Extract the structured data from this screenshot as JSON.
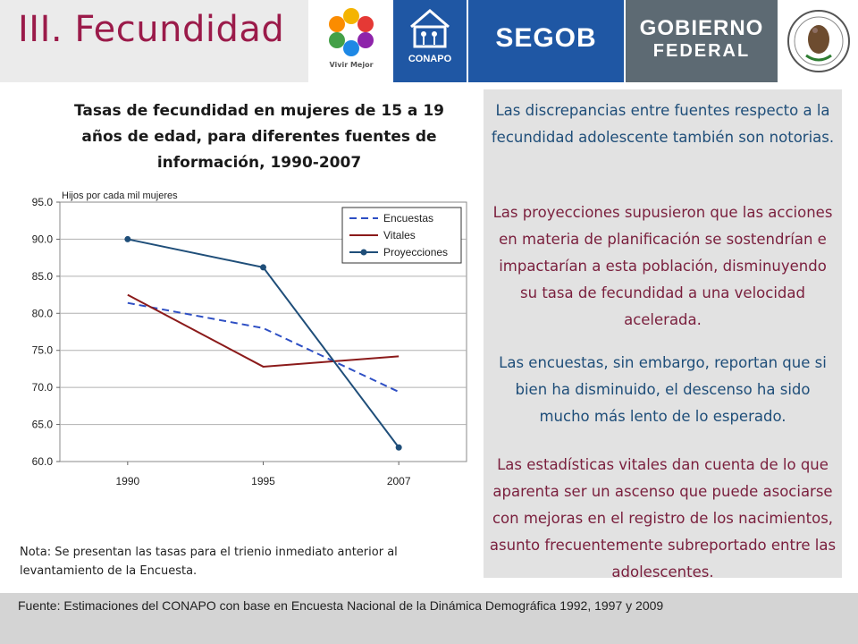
{
  "header": {
    "title": "III. Fecundidad",
    "logos": {
      "vivir_mejor": "Vivir Mejor",
      "conapo": "CONAPO",
      "segob": "SEGOB",
      "gobierno_line1": "GOBIERNO",
      "gobierno_line2": "FEDERAL"
    },
    "colors": {
      "title": "#9b1b4a",
      "conapo_bg": "#1f57a4",
      "segob_bg": "#1f57a4",
      "gobierno_bg": "#5d6a73"
    }
  },
  "chart_title": "Tasas de fecundidad en mujeres de 15 a 19 años de edad, para diferentes fuentes de información, 1990-2007",
  "chart_data": {
    "type": "line",
    "title": "Tasas de fecundidad en mujeres de 15 a 19 años de edad, para diferentes fuentes de información, 1990-2007",
    "ylabel": "Hijos por cada mil mujeres",
    "xlabel": "",
    "categories": [
      "1990",
      "1995",
      "2007"
    ],
    "ylim": [
      60,
      95
    ],
    "yticks": [
      "95.0",
      "90.0",
      "85.0",
      "80.0",
      "75.0",
      "70.0",
      "65.0",
      "60.0"
    ],
    "grid": true,
    "legend_position": "top-right",
    "series": [
      {
        "name": "Encuestas",
        "values": [
          81.4,
          78.0,
          69.4
        ],
        "color": "#2e4fc4",
        "style": "dashed",
        "marker": "none"
      },
      {
        "name": "Vitales",
        "values": [
          82.5,
          72.8,
          74.2
        ],
        "color": "#8b1a1a",
        "style": "solid",
        "marker": "none"
      },
      {
        "name": "Proyecciones",
        "values": [
          90.0,
          86.2,
          61.9
        ],
        "color": "#1f4e79",
        "style": "solid",
        "marker": "circle"
      }
    ]
  },
  "note": "Nota: Se presentan las tasas para el trienio inmediato anterior al levantamiento de la Encuesta.",
  "panel": {
    "p1": "Las discrepancias entre fuentes respecto a la fecundidad adolescente también son notorias.",
    "p2": "Las proyecciones supusieron que las acciones en materia de planificación se sostendrían e impactarían a esta población, disminuyendo su tasa de fecundidad a una velocidad acelerada.",
    "p3": "Las encuestas, sin embargo, reportan que si bien ha disminuido, el descenso ha sido mucho más lento de lo esperado.",
    "p4": "Las estadísticas vitales dan cuenta de lo que aparenta ser un ascenso que puede asociarse con mejoras en el registro de los nacimientos, asunto frecuentemente subreportado entre las adolescentes.",
    "colors": {
      "blue_text": "#1f4e79",
      "red_text": "#7a1f3d",
      "background": "#e2e2e2"
    }
  },
  "footer": {
    "source": "Fuente: Estimaciones del CONAPO con base en Encuesta Nacional de la Dinámica Demográfica 1992, 1997 y 2009"
  }
}
